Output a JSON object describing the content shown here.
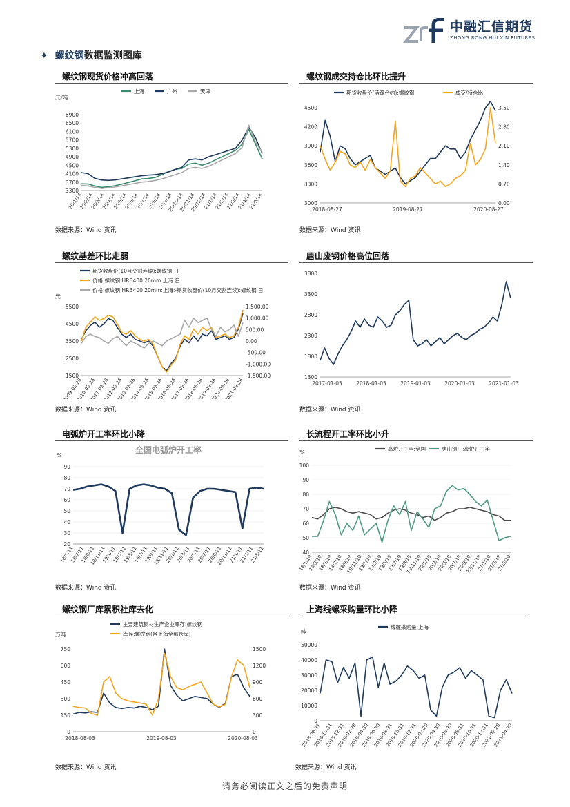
{
  "header": {
    "logo_cn": "中融汇信期货",
    "logo_en": "ZHONG RONG HUI XIN FUTURES"
  },
  "section": {
    "title_highlight": "螺纹钢",
    "title_rest": "数据监测图库"
  },
  "footer": {
    "disclaimer": "请务必阅读正文之后的免责声明"
  },
  "colors": {
    "navy": "#1f3a5c",
    "green": "#3a8a6e",
    "gray": "#a8a8a8",
    "orange": "#f5a51c",
    "teal": "#4f9a86"
  },
  "panels": [
    {
      "title": "螺纹钢现货价格冲高回落",
      "source": "数据来源：Wind 资讯",
      "chart_data": {
        "type": "line",
        "unit": "元/吨",
        "ylim": [
          3300,
          6900
        ],
        "yticks": [
          "3300",
          "3700",
          "4100",
          "4500",
          "4900",
          "5300",
          "5700",
          "6100",
          "6500",
          "6900"
        ],
        "xticks": [
          "20/1/14",
          "20/2/14",
          "20/3/14",
          "20/4/14",
          "20/5/14",
          "20/6/14",
          "20/7/14",
          "20/8/14",
          "20/9/14",
          "20/10/14",
          "20/11/14",
          "20/12/14",
          "21/1/14",
          "21/2/14",
          "21/3/14",
          "21/4/14",
          "21/5/14"
        ],
        "legend": [
          "上海",
          "广州",
          "天津"
        ],
        "series": [
          {
            "name": "上海",
            "color": "#3a8a6e",
            "values": [
              3620,
              3610,
              3520,
              3450,
              3480,
              3530,
              3600,
              3680,
              3760,
              3850,
              3870,
              3920,
              4050,
              4200,
              4300,
              4350,
              4550,
              4600,
              4500,
              4600,
              4750,
              4900,
              5050,
              5200,
              5500,
              6200,
              5500,
              4800
            ]
          },
          {
            "name": "广州",
            "color": "#1f3a5c",
            "values": [
              4150,
              4100,
              3880,
              3800,
              3780,
              3800,
              3850,
              3900,
              3950,
              4000,
              4030,
              4050,
              4100,
              4180,
              4300,
              4400,
              4750,
              4800,
              4750,
              4900,
              5000,
              5100,
              5200,
              5300,
              5700,
              6300,
              5800,
              5050
            ]
          },
          {
            "name": "天津",
            "color": "#a8a8a8",
            "values": [
              3550,
              3520,
              3450,
              3400,
              3430,
              3470,
              3520,
              3580,
              3640,
              3700,
              3730,
              3780,
              3850,
              3950,
              4050,
              4150,
              4350,
              4400,
              4350,
              4450,
              4600,
              4750,
              4900,
              5050,
              5350,
              6400,
              5600,
              5100
            ]
          }
        ]
      }
    },
    {
      "title": "螺纹钢成交持仓比环比提升",
      "source": "数据来源：Wind 资讯",
      "chart_data": {
        "type": "line",
        "ylim": [
          3000,
          4500
        ],
        "yticks": [
          "3000",
          "3300",
          "3600",
          "3900",
          "4200",
          "4500"
        ],
        "y2lim": [
          0,
          3.5
        ],
        "y2ticks": [
          "0.00",
          "0.70",
          "1.40",
          "2.10",
          "2.80",
          "3.50"
        ],
        "xticks": [
          "2018-08-27",
          "2019-08-27",
          "2020-08-27"
        ],
        "legend": [
          "期货收盘价(活跃合约):螺纹钢",
          "成交/持仓比"
        ],
        "series": [
          {
            "name": "期货收盘价(活跃合约):螺纹钢",
            "color": "#1f3a5c",
            "axis": "left",
            "values": [
              3800,
              4300,
              4050,
              3650,
              3900,
              3850,
              3700,
              3600,
              3650,
              3700,
              3750,
              3550,
              3500,
              3450,
              3500,
              3550,
              3400,
              3300,
              3350,
              3400,
              3500,
              3600,
              3700,
              3700,
              3800,
              3900,
              3850,
              3850,
              3700,
              3800,
              4000,
              4150,
              4300,
              4500,
              4600,
              4450
            ]
          },
          {
            "name": "成交/持仓比",
            "color": "#f5a51c",
            "axis": "right",
            "values": [
              2.1,
              1.6,
              1.2,
              1.5,
              1.9,
              1.8,
              1.4,
              1.3,
              1.5,
              1.2,
              1.6,
              1.3,
              1.1,
              0.9,
              1.2,
              3.0,
              0.8,
              0.6,
              0.9,
              1.0,
              1.3,
              1.1,
              0.9,
              0.7,
              0.8,
              0.6,
              0.7,
              0.9,
              1.0,
              1.2,
              2.2,
              1.4,
              1.6,
              2.0,
              3.5,
              2.2
            ]
          }
        ]
      }
    },
    {
      "title": "螺纹基差环比走弱",
      "source": "数据来源：Wind 资讯",
      "chart_data": {
        "type": "line",
        "unit": "元",
        "ylim": [
          1500,
          5500
        ],
        "yticks": [
          "1500",
          "2500",
          "3500",
          "4500",
          "5500"
        ],
        "y2lim": [
          -1500,
          1500
        ],
        "y2ticks": [
          "-1,500.00",
          "-1,000.00",
          "-500.00",
          "0.00",
          "500.00",
          "1,000.00",
          "1,500.00"
        ],
        "xticks": [
          "2009-03-26",
          "2010-03-26",
          "2011-03-26",
          "2012-03-26",
          "2013-03-26",
          "2014-03-26",
          "2015-03-26",
          "2016-03-26",
          "2017-03-26",
          "2018-03-26",
          "2019-03-26",
          "2020-03-26",
          "2021-03-26"
        ],
        "legend": [
          "期货收盘价(10月交割连续):螺纹钢 日",
          "价格:螺纹钢:HRB400 20mm:上海 日",
          "价格:螺纹钢:HRB400 20mm:上海:-期货收盘价(10月交割连续):螺纹钢 日"
        ],
        "series": [
          {
            "name": "期货收盘价(10月交割连续):螺纹钢 日",
            "color": "#1f3a5c",
            "axis": "left",
            "values": [
              3600,
              4100,
              4400,
              4600,
              4300,
              4500,
              4800,
              4700,
              4300,
              3900,
              3700,
              3900,
              3600,
              3500,
              3400,
              3500,
              3200,
              2600,
              2000,
              1800,
              2200,
              2500,
              3200,
              3600,
              3400,
              3800,
              3500,
              3900,
              3800,
              4100,
              3600,
              3700,
              3800,
              3600,
              3700,
              4200,
              5100
            ]
          },
          {
            "name": "价格:螺纹钢:HRB400 20mm:上海 日",
            "color": "#f5a51c",
            "axis": "left",
            "values": [
              3500,
              4300,
              4600,
              4900,
              4700,
              4800,
              5000,
              4900,
              4500,
              4000,
              3900,
              4100,
              3800,
              3600,
              3500,
              3600,
              3300,
              2600,
              2000,
              1700,
              2100,
              2400,
              3300,
              3800,
              3600,
              4200,
              3900,
              4300,
              4100,
              4300,
              3700,
              3800,
              3900,
              3700,
              3800,
              4300,
              5300
            ]
          },
          {
            "name": "价格:螺纹钢:HRB400 20mm:上海:-期货收盘价(10月交割连续):螺纹钢 日",
            "color": "#a8a8a8",
            "axis": "right",
            "values": [
              -100,
              200,
              300,
              200,
              150,
              0,
              -100,
              100,
              200,
              0,
              -200,
              0,
              -100,
              -200,
              -300,
              -100,
              0,
              -100,
              -200,
              0,
              100,
              200,
              300,
              900,
              600,
              1000,
              800,
              900,
              1000,
              500,
              200,
              600,
              400,
              500,
              700,
              200,
              800
            ]
          }
        ]
      }
    },
    {
      "title": "唐山废钢价格高位回落",
      "source": "数据来源：Wind 资讯",
      "chart_data": {
        "type": "line",
        "ylim": [
          1300,
          3800
        ],
        "yticks": [
          "1300",
          "1800",
          "2300",
          "2800",
          "3300",
          "3800"
        ],
        "xticks": [
          "2017-01-03",
          "2018-01-03",
          "2019-01-03",
          "2020-01-03",
          "2021-01-03"
        ],
        "series": [
          {
            "name": "",
            "color": "#1f3a5c",
            "values": [
              1700,
              2000,
              1750,
              1600,
              1850,
              2050,
              2200,
              2400,
              2650,
              2500,
              2700,
              2550,
              2500,
              2750,
              2650,
              2500,
              2550,
              2800,
              2900,
              3050,
              3150,
              2200,
              2050,
              2100,
              2200,
              2050,
              2150,
              2250,
              2100,
              2200,
              2300,
              2350,
              2250,
              2200,
              2300,
              2350,
              2450,
              2500,
              2600,
              2750,
              2650,
              3050,
              3600,
              3200
            ]
          }
        ]
      }
    },
    {
      "title": "电弧炉开工率环比小降",
      "source": "数据来源：Wind 资讯",
      "chart_data": {
        "type": "line",
        "title": "全国电弧炉开工率",
        "unit": "%",
        "ylim": [
          20,
          90
        ],
        "yticks": [
          "20",
          "30",
          "40",
          "50",
          "60",
          "70",
          "80",
          "90"
        ],
        "xticks": [
          "18/5/11",
          "18/7/11",
          "18/9/11",
          "18/11/11",
          "19/1/11",
          "19/3/11",
          "19/5/11",
          "19/7/11",
          "19/9/11",
          "19/11/11",
          "20/1/11",
          "20/3/11",
          "20/5/11",
          "20/7/11",
          "20/9/11",
          "20/11/11",
          "21/1/11",
          "21/3/11",
          "21/5/11"
        ],
        "series": [
          {
            "name": "",
            "color": "#1f3a5c",
            "values": [
              69,
              70,
              72,
              73,
              74,
              72,
              68,
              30,
              70,
              73,
              74,
              73,
              71,
              70,
              66,
              33,
              28,
              62,
              68,
              70,
              70,
              69,
              68,
              67,
              34,
              70,
              71,
              70
            ]
          }
        ]
      }
    },
    {
      "title": "长流程开工率环比小升",
      "source": "数据来源：Wind 资讯",
      "chart_data": {
        "type": "line",
        "unit": "%",
        "ylim": [
          40,
          100
        ],
        "yticks": [
          "40",
          "50",
          "60",
          "70",
          "80",
          "90",
          "100"
        ],
        "xticks": [
          "18/1/19",
          "18/3/19",
          "18/5/19",
          "18/7/19",
          "18/9/19",
          "18/11/19",
          "19/1/19",
          "19/3/19",
          "19/5/19",
          "19/7/19",
          "19/9/19",
          "19/11/19",
          "20/1/19",
          "20/3/19",
          "20/5/19",
          "20/7/19",
          "20/9/19",
          "20/11/19",
          "21/1/19",
          "21/3/19",
          "21/5/19"
        ],
        "legend": [
          "高炉开工率:全国",
          "唐山钢厂:高炉开工率"
        ],
        "series": [
          {
            "name": "高炉开工率:全国",
            "color": "#4a4a4a",
            "values": [
              64,
              63,
              66,
              70,
              71,
              70,
              68,
              67,
              68,
              67,
              66,
              63,
              64,
              67,
              69,
              70,
              69,
              67,
              66,
              64,
              65,
              62,
              64,
              67,
              68,
              70,
              70,
              71,
              70,
              69,
              68,
              66,
              65,
              62,
              62
            ]
          },
          {
            "name": "唐山钢厂:高炉开工率",
            "color": "#4f9a86",
            "values": [
              51,
              51,
              62,
              75,
              66,
              52,
              60,
              55,
              65,
              52,
              56,
              60,
              47,
              62,
              72,
              66,
              75,
              55,
              68,
              63,
              57,
              70,
              72,
              82,
              86,
              83,
              84,
              80,
              75,
              72,
              76,
              62,
              48,
              50,
              51
            ]
          }
        ]
      }
    },
    {
      "title": "螺纹钢厂库累积社库去化",
      "source": "数据来源：Wind 资讯",
      "chart_data": {
        "type": "line",
        "unit": "万吨",
        "ylim": [
          0,
          750
        ],
        "yticks": [
          "0",
          "150",
          "300",
          "450",
          "600",
          "750"
        ],
        "y2lim": [
          0,
          1500
        ],
        "y2ticks": [
          "0",
          "300",
          "600",
          "900",
          "1200",
          "1500"
        ],
        "xticks": [
          "2018-08-03",
          "2019-08-03",
          "2020-08-03"
        ],
        "legend": [
          "主要建筑钢材生产企业库存:螺纹钢",
          "库存:螺纹钢(含上海全部仓库)"
        ],
        "series": [
          {
            "name": "主要建筑钢材生产企业库存:螺纹钢",
            "color": "#1f3a5c",
            "axis": "left",
            "values": [
              160,
              175,
              170,
              180,
              175,
              350,
              260,
              220,
              210,
              220,
              215,
              230,
              220,
              200,
              230,
              750,
              420,
              330,
              280,
              300,
              320,
              310,
              300,
              250,
              220,
              260,
              500,
              520,
              400,
              320
            ]
          },
          {
            "name": "库存:螺纹钢(含上海全部仓库)",
            "color": "#f5a51c",
            "axis": "right",
            "values": [
              460,
              440,
              430,
              330,
              300,
              900,
              1000,
              700,
              600,
              560,
              540,
              520,
              500,
              300,
              600,
              1420,
              1000,
              800,
              760,
              820,
              860,
              900,
              700,
              500,
              450,
              500,
              1000,
              1300,
              1200,
              800
            ]
          }
        ]
      }
    },
    {
      "title": "上海线螺采购量环比小降",
      "source": "数据来源：Wind 资讯",
      "chart_data": {
        "type": "line",
        "unit": "吨",
        "ylim": [
          0,
          50000
        ],
        "yticks": [
          "0",
          "10000",
          "20000",
          "30000",
          "40000",
          "50000"
        ],
        "xticks": [
          "2018-08-31",
          "2018-10-31",
          "2018-12-31",
          "2019-02-28",
          "2019-04-30",
          "2019-06-30",
          "2019-08-31",
          "2019-10-31",
          "2019-12-31",
          "2020-02-29",
          "2020-04-30",
          "2020-06-30",
          "2020-08-31",
          "2020-10-31",
          "2020-12-31",
          "2021-02-28",
          "2021-04-30"
        ],
        "legend": [
          "线螺采购量:上海"
        ],
        "series": [
          {
            "name": "线螺采购量:上海",
            "color": "#1f3a5c",
            "values": [
              18000,
              40000,
              39000,
              25000,
              35000,
              28000,
              38000,
              3000,
              40000,
              42000,
              22000,
              38000,
              24000,
              26000,
              30000,
              36000,
              33000,
              28000,
              30000,
              7000,
              3000,
              22000,
              30000,
              32000,
              35000,
              28000,
              33000,
              30000,
              27000,
              3000,
              2000,
              20000,
              27000,
              18000
            ]
          }
        ]
      }
    }
  ]
}
